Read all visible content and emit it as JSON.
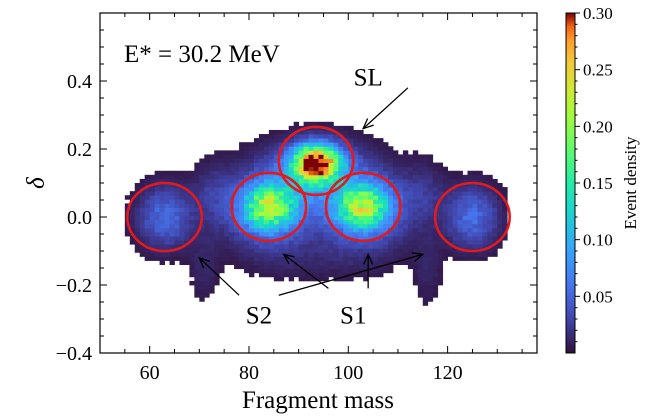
{
  "chart_data": {
    "type": "heatmap",
    "xlabel": "Fragment mass",
    "ylabel": "δ",
    "xlim": [
      50,
      138
    ],
    "ylim": [
      -0.4,
      0.6
    ],
    "x_ticks": [
      60,
      80,
      100,
      120
    ],
    "y_ticks": [
      -0.4,
      -0.2,
      0.0,
      0.2,
      0.4
    ],
    "x_tick_labels": [
      "60",
      "80",
      "100",
      "120"
    ],
    "y_tick_labels": [
      "−0.4",
      "−0.2",
      "0.0",
      "0.2",
      "0.4"
    ],
    "colorbar": {
      "label": "Event density",
      "range": [
        0.0,
        0.3
      ],
      "ticks": [
        0.05,
        0.1,
        0.15,
        0.2,
        0.25,
        0.3
      ],
      "tick_labels": [
        "0.05",
        "0.10",
        "0.15",
        "0.20",
        "0.25",
        "0.30"
      ],
      "colormap": "turbo"
    },
    "annotation_energy": "E* = 30.2 MeV",
    "modes": [
      {
        "label": "SL",
        "center_mass": 93.5,
        "center_delta": 0.16,
        "peak_density": 0.3
      },
      {
        "label": "S1",
        "center_mass": 84,
        "center_delta": 0.03,
        "peak_density": 0.18
      },
      {
        "label": "S1",
        "center_mass": 103,
        "center_delta": 0.03,
        "peak_density": 0.18
      },
      {
        "label": "S2",
        "center_mass": 63,
        "center_delta": 0.0,
        "peak_density": 0.06
      },
      {
        "label": "S2",
        "center_mass": 125,
        "center_delta": 0.0,
        "peak_density": 0.06
      }
    ],
    "region_circles": [
      {
        "mass": 63,
        "delta": 0.0,
        "r_mass": 7.5,
        "r_delta": 0.1
      },
      {
        "mass": 84,
        "delta": 0.03,
        "r_mass": 7.5,
        "r_delta": 0.1
      },
      {
        "mass": 93.5,
        "delta": 0.165,
        "r_mass": 7.5,
        "r_delta": 0.1
      },
      {
        "mass": 103,
        "delta": 0.03,
        "r_mass": 7.5,
        "r_delta": 0.1
      },
      {
        "mass": 125,
        "delta": 0.0,
        "r_mass": 7.5,
        "r_delta": 0.1
      }
    ],
    "labels": {
      "SL": {
        "text": "SL",
        "mass": 104,
        "delta": 0.41
      },
      "S1": {
        "text": "S1",
        "mass": 101,
        "delta": -0.29
      },
      "S2": {
        "text": "S2",
        "mass": 82,
        "delta": -0.29
      }
    },
    "arrows": [
      {
        "from": [
          112,
          0.38
        ],
        "to": [
          103,
          0.26
        ]
      },
      {
        "from": [
          96,
          -0.21
        ],
        "to": [
          87,
          -0.11
        ]
      },
      {
        "from": [
          104,
          -0.21
        ],
        "to": [
          104,
          -0.11
        ]
      },
      {
        "from": [
          78,
          -0.23
        ],
        "to": [
          70,
          -0.12
        ]
      },
      {
        "from": [
          86,
          -0.23
        ],
        "to": [
          115,
          -0.11
        ]
      }
    ],
    "series_colors": {
      "circle": "#e31a1c"
    }
  }
}
